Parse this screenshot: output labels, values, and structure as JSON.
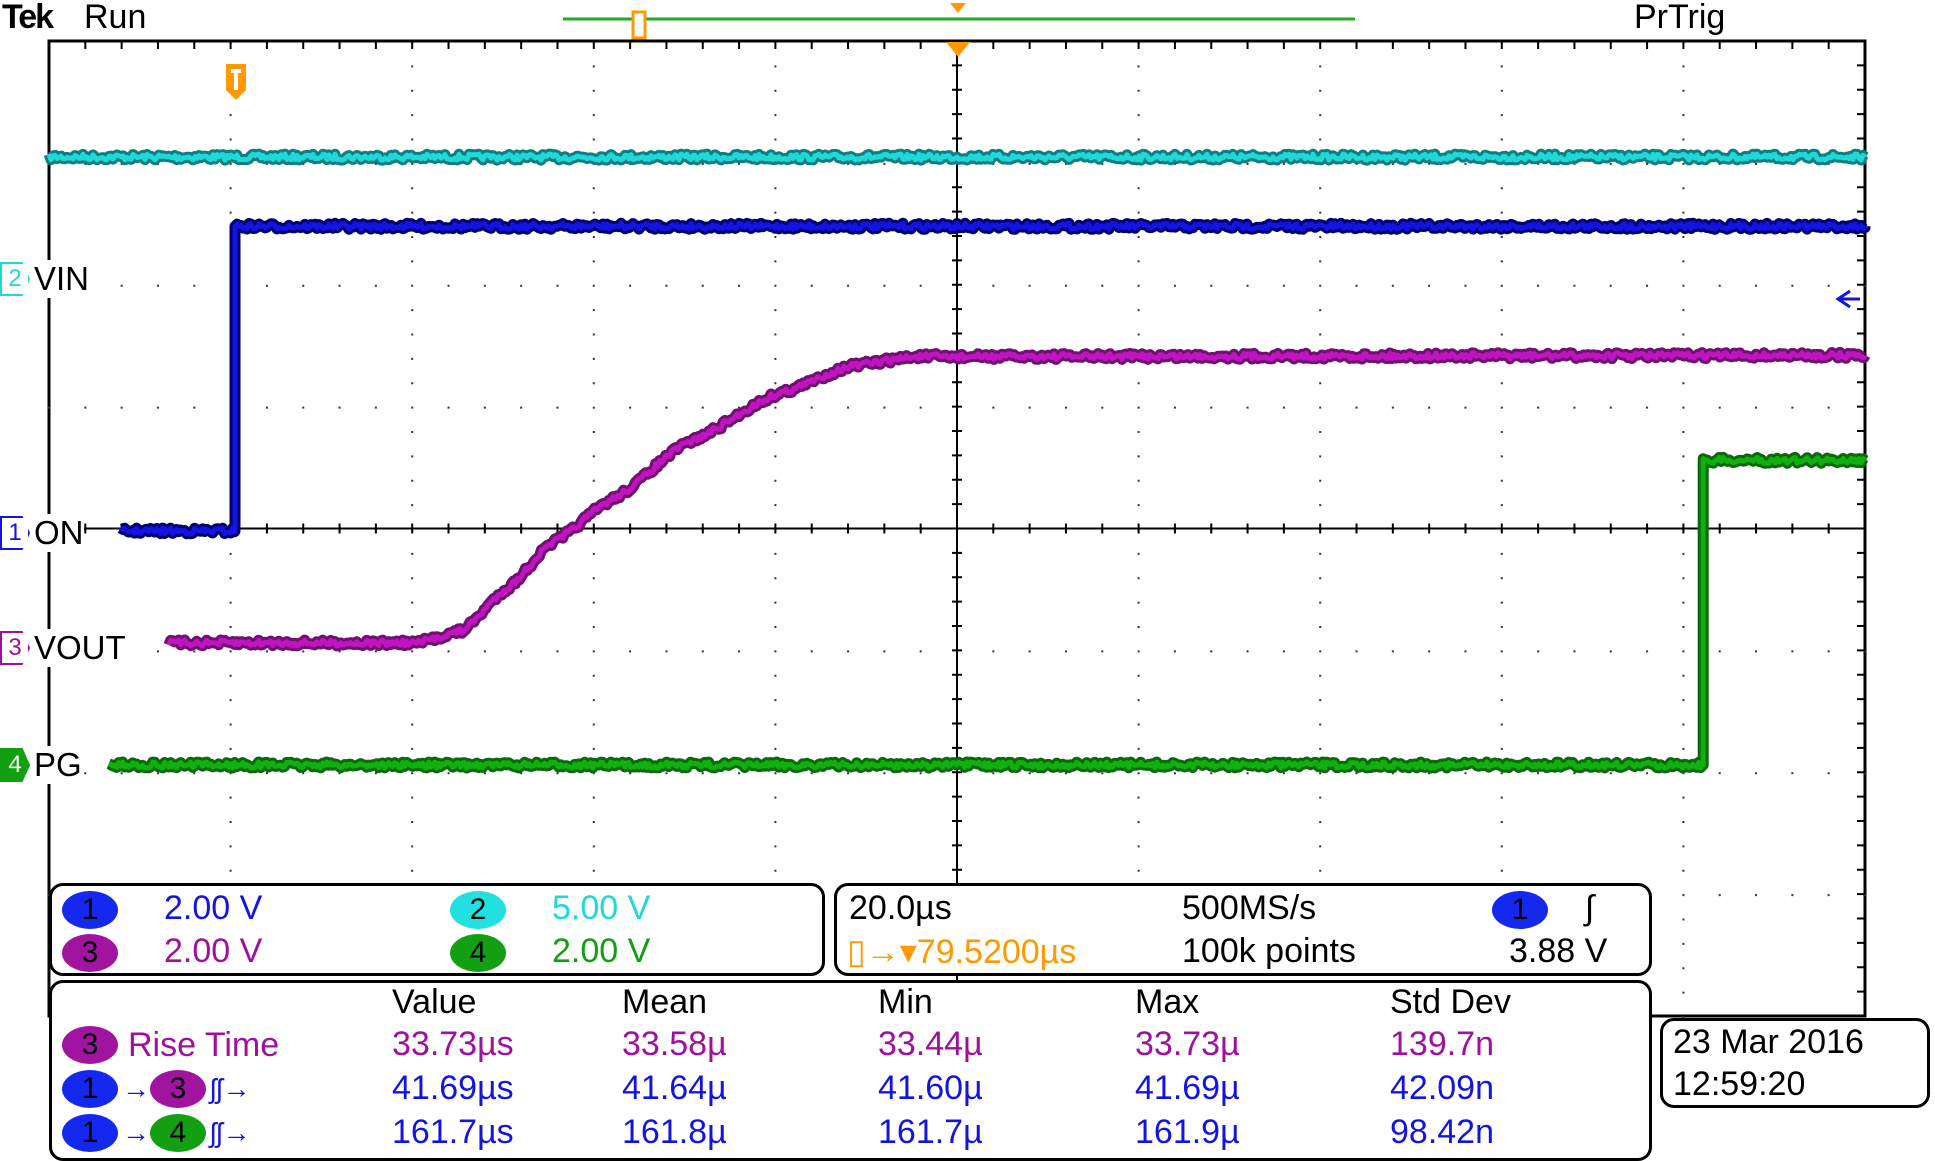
{
  "header": {
    "brand": "Tek",
    "status": "Run",
    "trigger_state": "PrTrig"
  },
  "channels": [
    {
      "id": "1",
      "label": "ON",
      "scale": "2.00 V",
      "color": "#1414e0"
    },
    {
      "id": "2",
      "label": "VIN",
      "scale": "5.00 V",
      "color": "#20d8d8"
    },
    {
      "id": "3",
      "label": "VOUT",
      "scale": "2.00 V",
      "color": "#a010a0"
    },
    {
      "id": "4",
      "label": "PG",
      "scale": "2.00 V",
      "color": "#10a010"
    }
  ],
  "timebase": {
    "time_per_div": "20.0µs",
    "sample_rate": "500MS/s",
    "trigger_position": "79.5200µs",
    "record_length": "100k points",
    "trigger_source": "1",
    "trigger_slope_icon": "rising-edge-icon",
    "trigger_level": "3.88 V"
  },
  "measurements": {
    "headers": [
      "Value",
      "Mean",
      "Min",
      "Max",
      "Std Dev"
    ],
    "rows": [
      {
        "source": "3",
        "name": "Rise Time",
        "values": [
          "33.73µs",
          "33.58µ",
          "33.44µ",
          "33.73µ",
          "139.7n"
        ]
      },
      {
        "source": "1",
        "target": "3",
        "name": "Delay",
        "values": [
          "41.69µs",
          "41.64µ",
          "41.60µ",
          "41.69µ",
          "42.09n"
        ]
      },
      {
        "source": "1",
        "target": "4",
        "name": "Delay",
        "values": [
          "161.7µs",
          "161.8µ",
          "161.7µ",
          "161.9µ",
          "98.42n"
        ]
      }
    ]
  },
  "datetime": {
    "date": "23 Mar  2016",
    "time": "12:59:20"
  },
  "chart_data": {
    "type": "line",
    "title": "",
    "xlabel": "",
    "ylabel": "",
    "x_units": "µs",
    "xlim": [
      -20.48,
      179.52
    ],
    "divisions": {
      "horizontal": 10,
      "vertical": 8
    },
    "grid": true,
    "series": [
      {
        "name": "VIN",
        "channel": "2",
        "color": "#20d8d8",
        "volts_per_div": 5.0,
        "points": [
          [
            -20.48,
            5.0
          ],
          [
            179.52,
            5.0
          ]
        ]
      },
      {
        "name": "ON",
        "channel": "1",
        "color": "#1414e0",
        "volts_per_div": 2.0,
        "points": [
          [
            -12.6,
            0
          ],
          [
            0,
            0
          ],
          [
            0,
            5.0
          ],
          [
            179.52,
            5.0
          ]
        ]
      },
      {
        "name": "VOUT",
        "channel": "3",
        "color": "#c014c0",
        "volts_per_div": 2.0,
        "points": [
          [
            -7.3,
            0
          ],
          [
            20,
            0
          ],
          [
            25,
            0.2
          ],
          [
            30,
            0.9
          ],
          [
            35,
            1.65
          ],
          [
            41.7,
            2.37
          ],
          [
            50,
            3.3
          ],
          [
            60,
            4.1
          ],
          [
            68,
            4.55
          ],
          [
            75,
            4.7
          ],
          [
            179.52,
            4.72
          ]
        ]
      },
      {
        "name": "PG",
        "channel": "4",
        "color": "#10b010",
        "volts_per_div": 2.0,
        "points": [
          [
            -13.9,
            0
          ],
          [
            161.7,
            0
          ],
          [
            161.7,
            5.0
          ],
          [
            179.52,
            5.0
          ]
        ]
      }
    ]
  }
}
